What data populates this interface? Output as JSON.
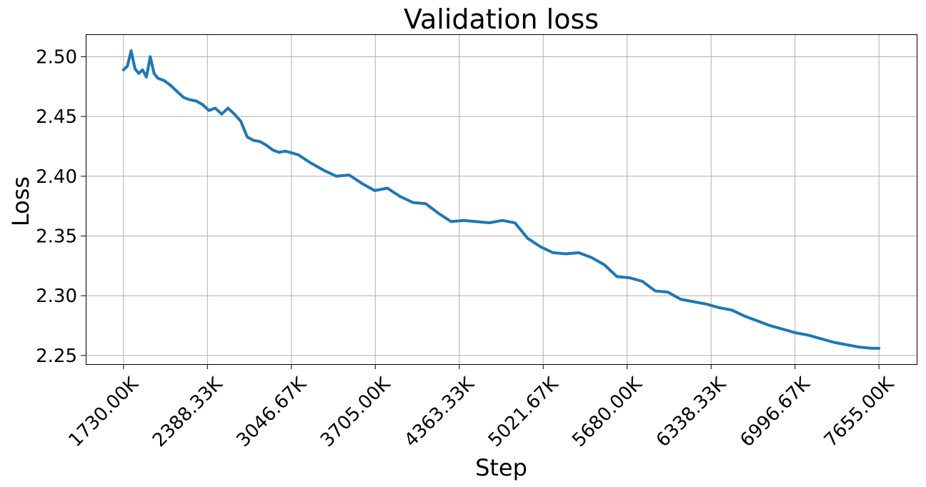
{
  "chart_data": {
    "type": "line",
    "title": "Validation loss",
    "xlabel": "Step",
    "ylabel": "Loss",
    "xlim": [
      1434,
      7951
    ],
    "ylim": [
      2.2427,
      2.5188
    ],
    "grid": true,
    "x_ticks": [
      1730.0,
      2388.33,
      3046.67,
      3705.0,
      4363.33,
      5021.67,
      5680.0,
      6338.33,
      6996.67,
      7655.0
    ],
    "x_tick_labels": [
      "1730.00K",
      "2388.33K",
      "3046.67K",
      "3705.00K",
      "4363.33K",
      "5021.67K",
      "5680.00K",
      "6338.33K",
      "6996.67K",
      "7655.00K"
    ],
    "y_ticks": [
      2.25,
      2.3,
      2.35,
      2.4,
      2.45,
      2.5
    ],
    "y_tick_labels": [
      "2.25",
      "2.30",
      "2.35",
      "2.40",
      "2.45",
      "2.50"
    ],
    "series": [
      {
        "color": "#1f77b4",
        "x": [
          1730,
          1760,
          1790,
          1820,
          1850,
          1880,
          1910,
          1940,
          1970,
          2000,
          2050,
          2100,
          2150,
          2200,
          2250,
          2300,
          2350,
          2400,
          2450,
          2500,
          2550,
          2600,
          2650,
          2700,
          2750,
          2800,
          2850,
          2900,
          2950,
          3000,
          3100,
          3200,
          3300,
          3400,
          3500,
          3600,
          3700,
          3800,
          3900,
          4000,
          4100,
          4200,
          4300,
          4400,
          4500,
          4600,
          4700,
          4800,
          4900,
          5000,
          5100,
          5200,
          5300,
          5400,
          5500,
          5600,
          5700,
          5800,
          5900,
          6000,
          6100,
          6200,
          6300,
          6400,
          6500,
          6600,
          6700,
          6800,
          6900,
          7000,
          7100,
          7200,
          7300,
          7400,
          7500,
          7600,
          7655
        ],
        "y": [
          2.489,
          2.492,
          2.505,
          2.49,
          2.486,
          2.489,
          2.483,
          2.5,
          2.486,
          2.482,
          2.48,
          2.476,
          2.471,
          2.466,
          2.464,
          2.463,
          2.46,
          2.455,
          2.457,
          2.452,
          2.457,
          2.452,
          2.446,
          2.433,
          2.43,
          2.429,
          2.426,
          2.422,
          2.42,
          2.421,
          2.418,
          2.411,
          2.405,
          2.4,
          2.401,
          2.394,
          2.388,
          2.39,
          2.383,
          2.378,
          2.377,
          2.369,
          2.362,
          2.363,
          2.362,
          2.361,
          2.363,
          2.361,
          2.348,
          2.341,
          2.336,
          2.335,
          2.336,
          2.332,
          2.326,
          2.316,
          2.315,
          2.312,
          2.304,
          2.303,
          2.297,
          2.295,
          2.293,
          2.29,
          2.288,
          2.283,
          2.279,
          2.275,
          2.272,
          2.269,
          2.267,
          2.264,
          2.261,
          2.259,
          2.257,
          2.256,
          2.256
        ]
      }
    ]
  }
}
